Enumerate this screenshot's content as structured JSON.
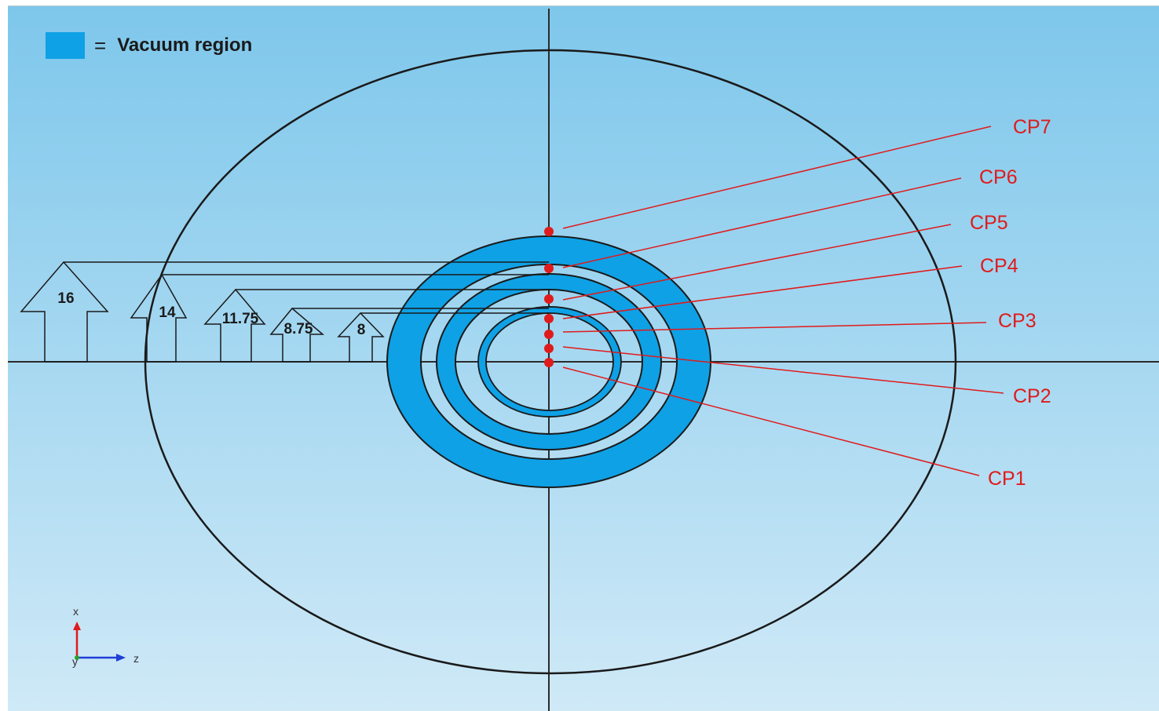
{
  "legend": {
    "swatch_color": "#0ea1e6",
    "equals": "=",
    "label": "Vacuum region"
  },
  "colors": {
    "vacuum": "#0ea1e6",
    "control_point": "#e01b1b",
    "outline": "#1a1a1a",
    "background_top": "#7ec7eb",
    "background_bottom": "#cfe9f7"
  },
  "control_points": [
    {
      "id": "CP1",
      "label": "CP1"
    },
    {
      "id": "CP2",
      "label": "CP2"
    },
    {
      "id": "CP3",
      "label": "CP3"
    },
    {
      "id": "CP4",
      "label": "CP4"
    },
    {
      "id": "CP5",
      "label": "CP5"
    },
    {
      "id": "CP6",
      "label": "CP6"
    },
    {
      "id": "CP7",
      "label": "CP7"
    }
  ],
  "radius_markers": [
    "16",
    "14",
    "11.75",
    "8.75",
    "8"
  ],
  "axes": {
    "vertical_label": "x",
    "horizontal_label": "z",
    "depth_label": "y"
  }
}
